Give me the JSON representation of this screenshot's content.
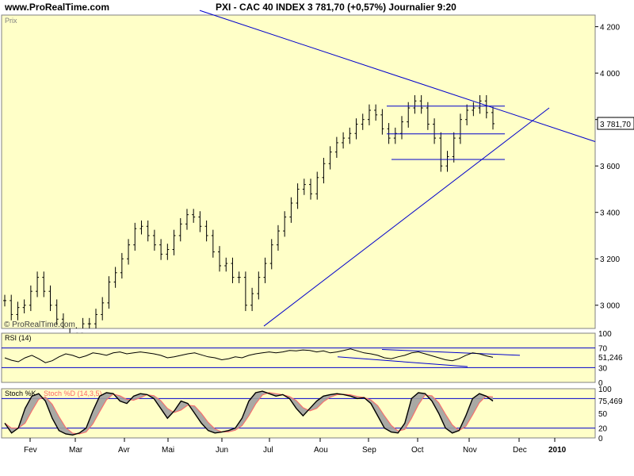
{
  "header": {
    "site": "www.ProRealTime.com",
    "title": "PXI - CAC 40 INDEX   3 781,70 (+0,57%)   Journalier  9:20"
  },
  "colors": {
    "panel_bg": "#ffffc8",
    "trendline": "#0000cc",
    "price_bars": "#000000",
    "stoch_d": "#ff6666",
    "stoch_fill": "#a0a0a0",
    "grid_border": "#808080",
    "label_bg": "#ffffff"
  },
  "chart_data": [
    {
      "panel": "price",
      "type": "ohlc",
      "label": "Prix",
      "watermark": "© ProRealTime.com",
      "y_range": [
        2900,
        4250
      ],
      "y_ticks": [
        "4 200",
        "4 000",
        "3 800",
        "3 600",
        "3 400",
        "3 200",
        "3 000"
      ],
      "y_tick_values": [
        4200,
        4000,
        3800,
        3600,
        3400,
        3200,
        3000
      ],
      "last_value_label": "3 781,70",
      "last_value": 3781.7,
      "close_series_approx": [
        3020,
        2960,
        2990,
        3000,
        3060,
        3120,
        3060,
        3000,
        2940,
        2840,
        2800,
        2880,
        2920,
        2920,
        2960,
        3010,
        3100,
        3140,
        3200,
        3260,
        3330,
        3340,
        3300,
        3260,
        3220,
        3240,
        3300,
        3350,
        3390,
        3380,
        3340,
        3300,
        3230,
        3170,
        3180,
        3120,
        3120,
        3000,
        3050,
        3120,
        3180,
        3260,
        3320,
        3380,
        3440,
        3500,
        3520,
        3480,
        3550,
        3610,
        3660,
        3700,
        3720,
        3740,
        3780,
        3800,
        3840,
        3820,
        3760,
        3720,
        3740,
        3790,
        3850,
        3880,
        3850,
        3780,
        3720,
        3600,
        3640,
        3720,
        3800,
        3840,
        3850,
        3880,
        3830,
        3782
      ],
      "trendlines": [
        {
          "name": "upper-resistance",
          "from": [
            "Jan",
            4270
          ],
          "to": [
            "Dec+",
            3705
          ]
        },
        {
          "name": "lower-support",
          "from": [
            "Jul",
            2910
          ],
          "to": [
            "Dec",
            3850
          ]
        },
        {
          "name": "channel-top",
          "from": [
            "Sep",
            3858
          ],
          "to": [
            "Nov",
            3858
          ]
        },
        {
          "name": "channel-mid",
          "from": [
            "Sep",
            3738
          ],
          "to": [
            "Nov",
            3738
          ]
        },
        {
          "name": "channel-bottom",
          "from": [
            "Sep",
            3628
          ],
          "to": [
            "Nov",
            3628
          ]
        }
      ]
    },
    {
      "panel": "rsi",
      "type": "line",
      "label": "RSI (14)",
      "y_range": [
        0,
        100
      ],
      "y_ticks": [
        "100",
        "70",
        "30",
        "0"
      ],
      "y_tick_values": [
        100,
        70,
        30,
        0
      ],
      "levels": [
        70,
        30
      ],
      "last_value_label": "51,246",
      "last_value": 51.246,
      "series_approx": [
        50,
        45,
        42,
        50,
        55,
        48,
        40,
        44,
        52,
        58,
        55,
        50,
        54,
        60,
        58,
        55,
        60,
        62,
        58,
        60,
        62,
        60,
        58,
        55,
        50,
        52,
        55,
        58,
        60,
        56,
        52,
        50,
        46,
        48,
        52,
        50,
        55,
        58,
        60,
        62,
        60,
        62,
        65,
        64,
        66,
        65,
        62,
        64,
        60,
        62,
        65,
        68,
        64,
        60,
        58,
        55,
        50,
        48,
        52,
        55,
        60,
        62,
        58,
        54,
        50,
        46,
        44,
        48,
        55,
        60,
        58,
        54,
        51
      ]
    },
    {
      "panel": "stoch",
      "type": "line",
      "label": "Stoch %K",
      "label2": "Stoch %D (14,3,5)",
      "y_range": [
        0,
        100
      ],
      "y_ticks": [
        "100",
        "50",
        "20",
        "0"
      ],
      "y_tick_values": [
        100,
        50,
        20,
        0
      ],
      "levels": [
        80,
        20
      ],
      "last_value_label": "75,469",
      "last_value": 75.469,
      "series_approx": [
        30,
        10,
        20,
        60,
        85,
        90,
        75,
        40,
        15,
        8,
        6,
        10,
        20,
        55,
        85,
        92,
        90,
        75,
        70,
        85,
        90,
        88,
        80,
        60,
        40,
        55,
        75,
        70,
        50,
        30,
        15,
        10,
        12,
        15,
        20,
        40,
        75,
        92,
        95,
        90,
        85,
        88,
        80,
        60,
        45,
        60,
        75,
        85,
        88,
        90,
        88,
        85,
        80,
        82,
        70,
        45,
        20,
        12,
        10,
        30,
        80,
        92,
        90,
        75,
        50,
        20,
        10,
        15,
        45,
        80,
        90,
        85,
        75
      ]
    }
  ],
  "x_axis": {
    "labels": [
      "Fev",
      "Mar",
      "Avr",
      "Mai",
      "Jun",
      "Jul",
      "Aou",
      "Sep",
      "Oct",
      "Nov",
      "Dec",
      "2010"
    ]
  }
}
